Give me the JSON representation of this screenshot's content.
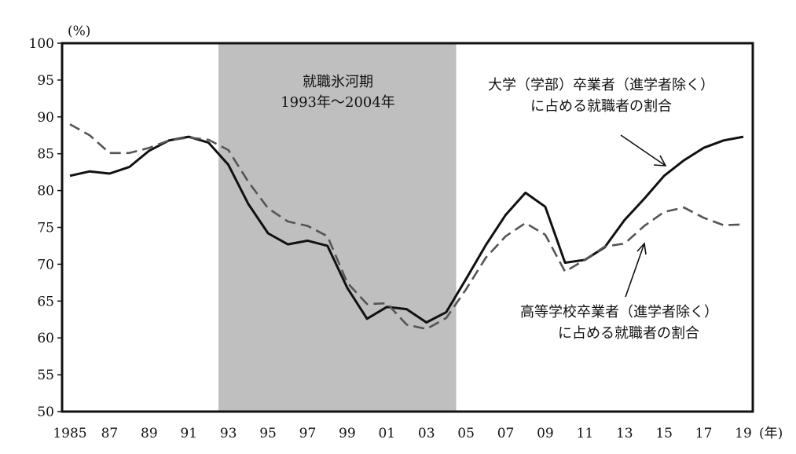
{
  "chart_data": {
    "type": "line",
    "title": "",
    "ylabel_unit": "(%)",
    "xlabel_unit": "(年)",
    "ylim": [
      50,
      100
    ],
    "yticks": [
      100,
      95,
      90,
      85,
      80,
      75,
      70,
      65,
      60,
      55,
      50
    ],
    "xlim": [
      1985,
      2019
    ],
    "xticks": [
      {
        "year": 1985,
        "label": "1985"
      },
      {
        "year": 1987,
        "label": "87"
      },
      {
        "year": 1989,
        "label": "89"
      },
      {
        "year": 1991,
        "label": "91"
      },
      {
        "year": 1993,
        "label": "93"
      },
      {
        "year": 1995,
        "label": "95"
      },
      {
        "year": 1997,
        "label": "97"
      },
      {
        "year": 1999,
        "label": "99"
      },
      {
        "year": 2001,
        "label": "01"
      },
      {
        "year": 2003,
        "label": "03"
      },
      {
        "year": 2005,
        "label": "05"
      },
      {
        "year": 2007,
        "label": "07"
      },
      {
        "year": 2009,
        "label": "09"
      },
      {
        "year": 2011,
        "label": "11"
      },
      {
        "year": 2013,
        "label": "13"
      },
      {
        "year": 2015,
        "label": "15"
      },
      {
        "year": 2017,
        "label": "17"
      },
      {
        "year": 2019,
        "label": "19"
      }
    ],
    "shaded_period": {
      "start": 1992.5,
      "end": 2004.5,
      "label_line1": "就職氷河期",
      "label_line2": "1993年～2004年",
      "color": "#bfbfbf"
    },
    "x": [
      1985,
      1986,
      1987,
      1988,
      1989,
      1990,
      1991,
      1992,
      1993,
      1994,
      1995,
      1996,
      1997,
      1998,
      1999,
      2000,
      2001,
      2002,
      2003,
      2004,
      2005,
      2006,
      2007,
      2008,
      2009,
      2010,
      2011,
      2012,
      2013,
      2014,
      2015,
      2016,
      2017,
      2018,
      2019
    ],
    "series": [
      {
        "name": "大学（学部）卒業者（進学者除く）に占める就職者の割合",
        "label_line1": "大学（学部）卒業者（進学者除く）",
        "label_line2": "に占める就職者の割合",
        "style": "solid",
        "color": "#111111",
        "values": [
          82.0,
          82.6,
          82.3,
          83.2,
          85.4,
          86.8,
          87.3,
          86.5,
          83.5,
          78.2,
          74.2,
          72.7,
          73.2,
          72.5,
          66.8,
          62.6,
          64.2,
          63.9,
          62.1,
          63.5,
          68.0,
          72.6,
          76.7,
          79.7,
          77.8,
          70.2,
          70.6,
          72.3,
          76.0,
          78.9,
          82.0,
          84.1,
          85.8,
          86.8,
          87.3
        ]
      },
      {
        "name": "高等学校卒業者（進学者除く）に占める就職者の割合",
        "label_line1": "高等学校卒業者（進学者除く）",
        "label_line2": "に占める就職者の割合",
        "style": "dashed",
        "color": "#555555",
        "values": [
          89.0,
          87.5,
          85.1,
          85.1,
          85.8,
          86.8,
          87.2,
          86.9,
          85.5,
          81.2,
          77.6,
          75.8,
          75.2,
          73.8,
          67.5,
          64.6,
          64.7,
          61.8,
          61.2,
          62.7,
          66.6,
          70.9,
          73.8,
          75.6,
          74.0,
          69.0,
          70.6,
          72.4,
          72.8,
          75.2,
          77.1,
          77.7,
          76.3,
          75.3,
          75.4
        ]
      }
    ],
    "annotations": {
      "arrow_color": "#111111"
    }
  }
}
